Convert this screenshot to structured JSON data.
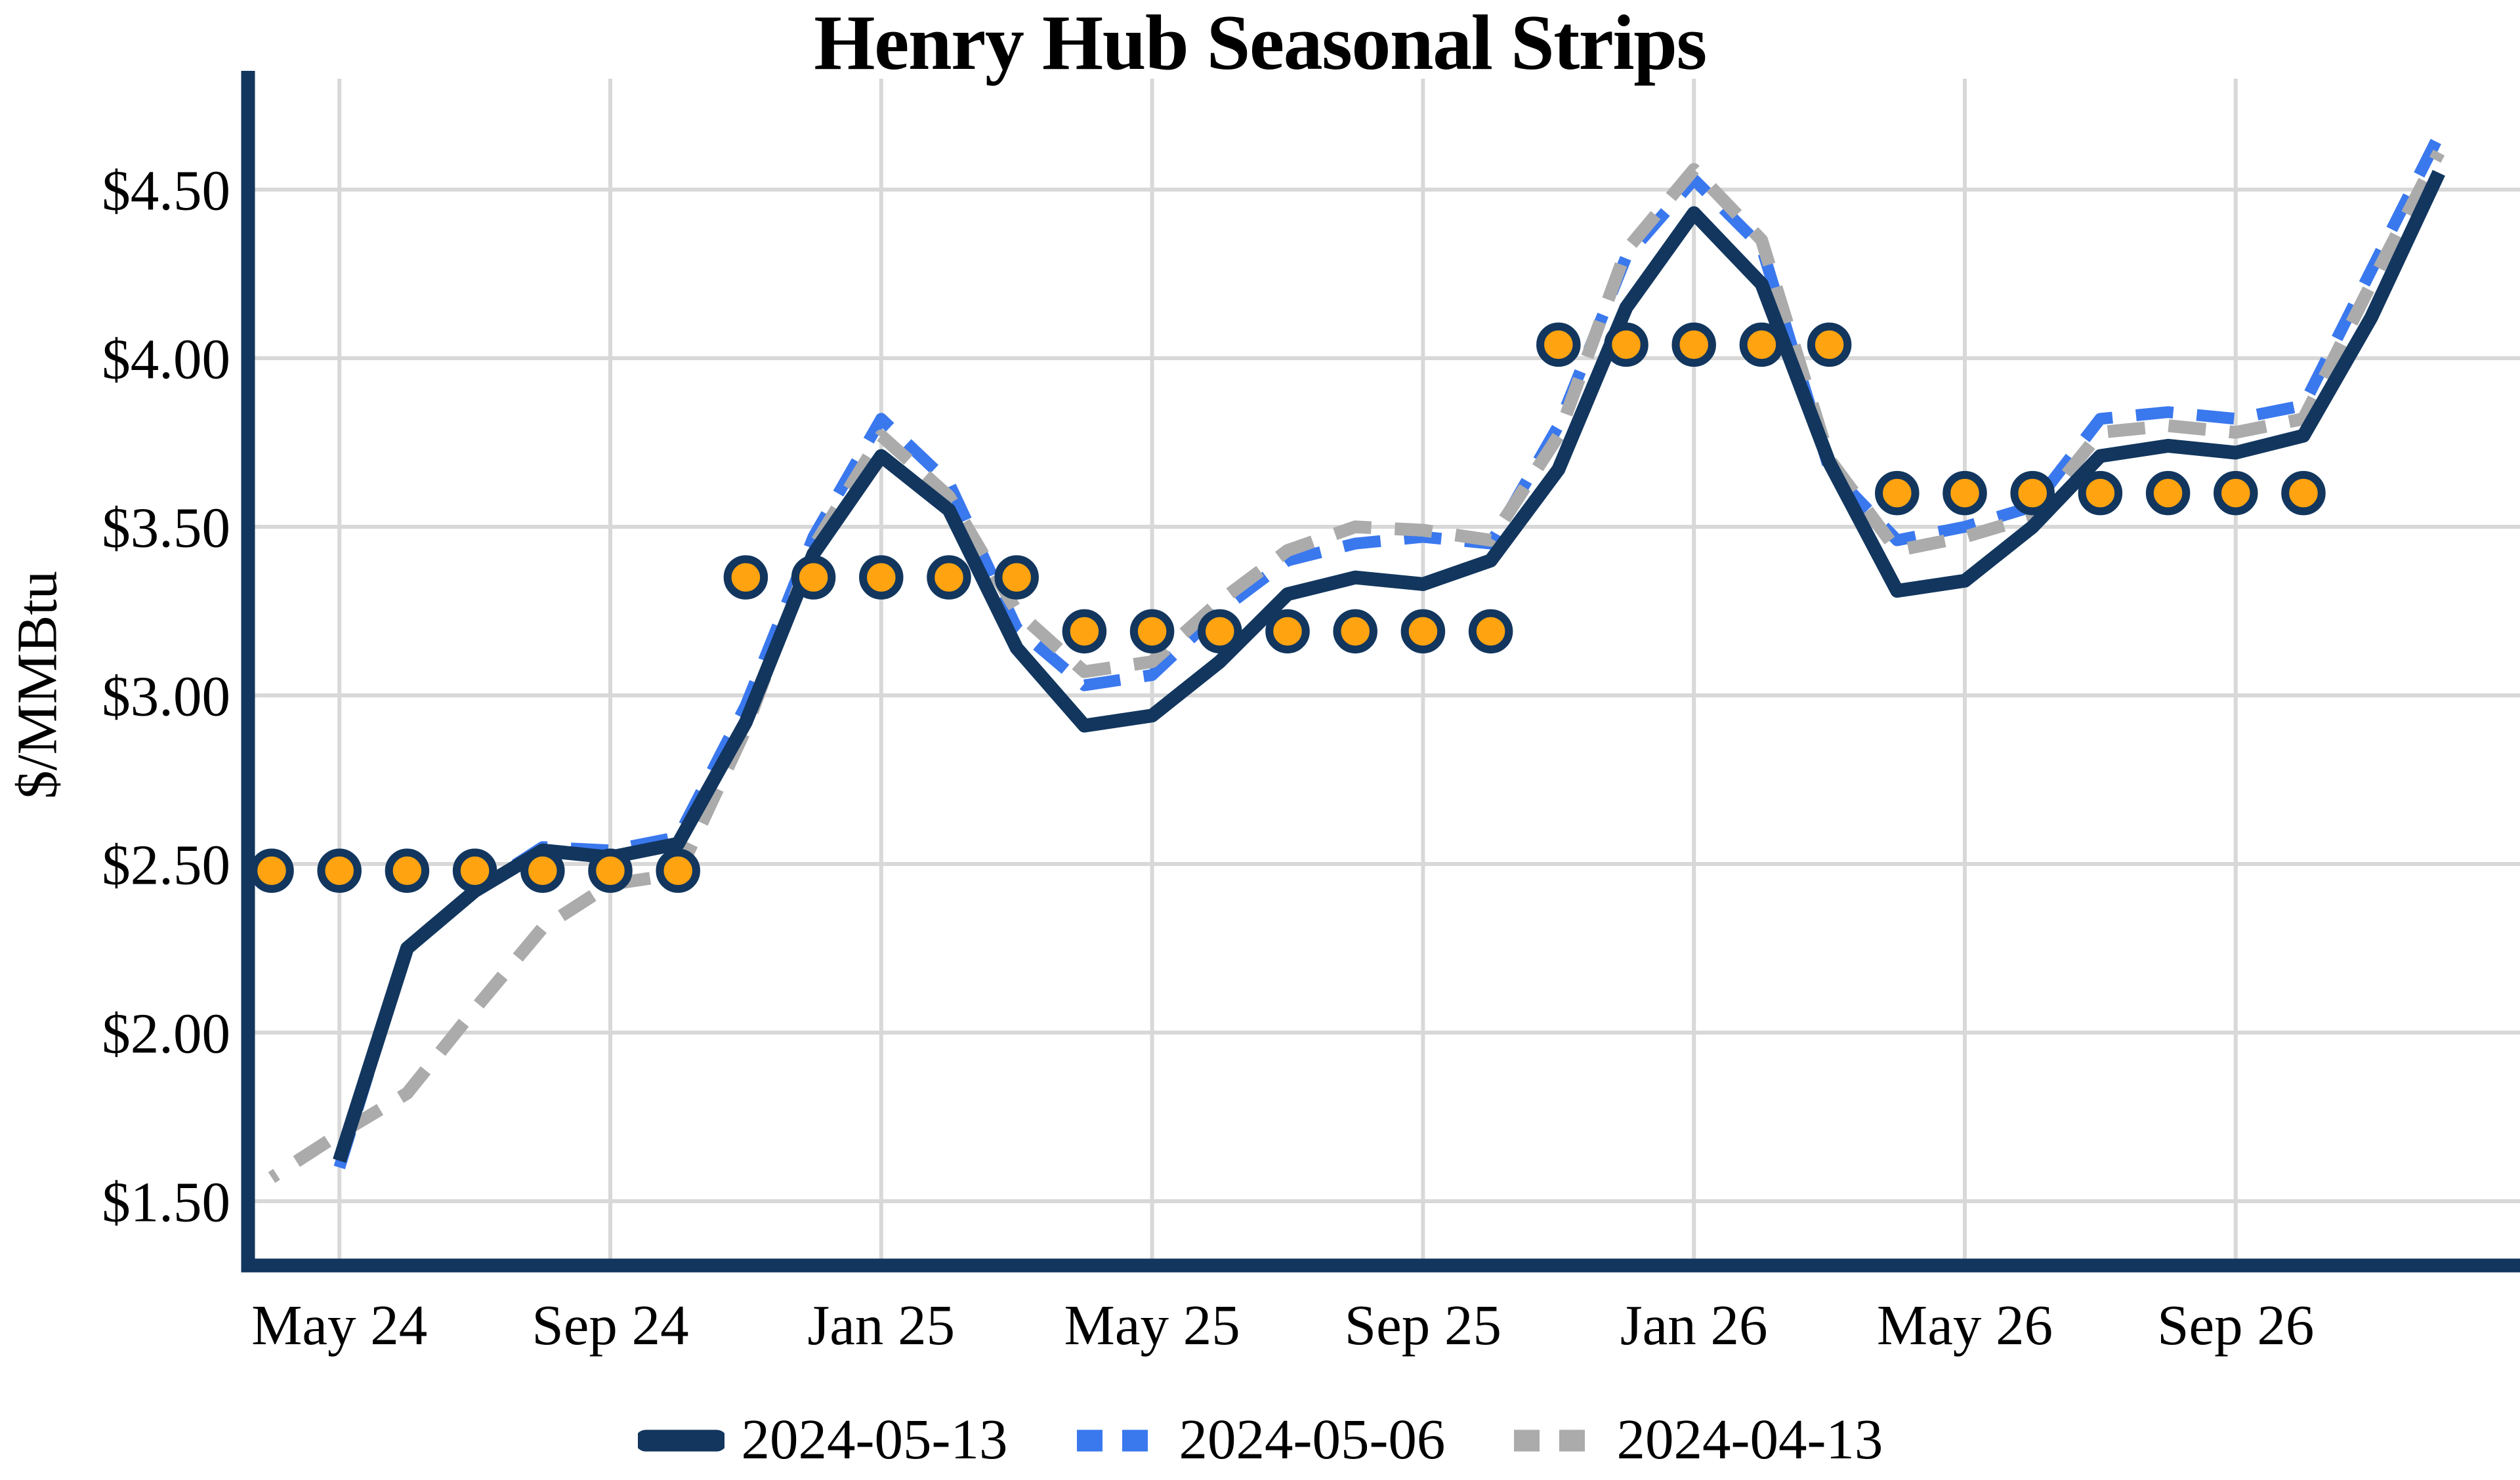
{
  "page": {
    "background": "#ffffff"
  },
  "chart_data": {
    "type": "line",
    "title": "Henry Hub Seasonal Strips",
    "ylabel": "$/MMBtu",
    "xlabel": "",
    "grid": true,
    "grid_color": "#d8d8d8",
    "axis_color": "#12365e",
    "ylim": [
      1.31,
      4.81
    ],
    "y_ticks": [
      1.5,
      2.0,
      2.5,
      3.0,
      3.5,
      4.0,
      4.5
    ],
    "y_tick_labels": [
      "$1.50",
      "$2.00",
      "$2.50",
      "$3.00",
      "$3.50",
      "$4.00",
      "$4.50"
    ],
    "months": [
      "Apr 24",
      "May 24",
      "Jun 24",
      "Jul 24",
      "Aug 24",
      "Sep 24",
      "Oct 24",
      "Nov 24",
      "Dec 24",
      "Jan 25",
      "Feb 25",
      "Mar 25",
      "Apr 25",
      "May 25",
      "Jun 25",
      "Jul 25",
      "Aug 25",
      "Sep 25",
      "Oct 25",
      "Nov 25",
      "Dec 25",
      "Jan 26",
      "Feb 26",
      "Mar 26",
      "Apr 26",
      "May 26",
      "Jun 26",
      "Jul 26",
      "Aug 26",
      "Sep 26",
      "Oct 26",
      "Nov 26",
      "Dec 26"
    ],
    "x_tick_indices": [
      1,
      5,
      9,
      13,
      17,
      21,
      25,
      29
    ],
    "x_tick_labels": [
      "May 24",
      "Sep 24",
      "Jan 25",
      "May 25",
      "Sep 25",
      "Jan 26",
      "May 26",
      "Sep 26"
    ],
    "legend_position": "bottom-center",
    "series": [
      {
        "name": "2024-05-13",
        "style": "solid",
        "color": "#12365e",
        "stroke_width": 7,
        "values": [
          null,
          1.62,
          2.25,
          2.42,
          2.54,
          2.52,
          2.56,
          2.92,
          3.42,
          3.71,
          3.55,
          3.14,
          2.91,
          2.94,
          3.1,
          3.3,
          3.35,
          3.33,
          3.4,
          3.67,
          4.15,
          4.43,
          4.22,
          3.69,
          3.31,
          3.34,
          3.5,
          3.71,
          3.74,
          3.72,
          3.77,
          4.12,
          4.55
        ]
      },
      {
        "name": "2024-05-06",
        "style": "dashed",
        "color": "#3a78ee",
        "stroke_width": 6,
        "values": [
          null,
          1.6,
          2.25,
          2.42,
          2.55,
          2.54,
          2.58,
          2.97,
          3.47,
          3.82,
          3.63,
          3.2,
          3.03,
          3.06,
          3.25,
          3.4,
          3.45,
          3.47,
          3.45,
          3.8,
          4.3,
          4.53,
          4.33,
          3.67,
          3.46,
          3.5,
          3.56,
          3.82,
          3.84,
          3.82,
          3.86,
          4.26,
          4.66
        ]
      },
      {
        "name": "2024-04-13",
        "style": "dashed",
        "color": "#ababab",
        "stroke_width": 6.5,
        "values": [
          1.57,
          1.7,
          1.82,
          2.07,
          2.31,
          2.44,
          2.47,
          2.9,
          3.44,
          3.77,
          3.59,
          3.25,
          3.07,
          3.1,
          3.28,
          3.43,
          3.5,
          3.49,
          3.46,
          3.77,
          4.32,
          4.56,
          4.35,
          3.7,
          3.43,
          3.47,
          3.53,
          3.78,
          3.8,
          3.78,
          3.82,
          4.22,
          4.61
        ]
      }
    ],
    "seasonal_strips": [
      {
        "price": 2.48,
        "from": "Apr 24",
        "to": "Oct 24",
        "from_index": 0,
        "to_index": 6
      },
      {
        "price": 3.35,
        "from": "Nov 24",
        "to": "Mar 25",
        "from_index": 7,
        "to_index": 11
      },
      {
        "price": 3.19,
        "from": "Apr 25",
        "to": "Oct 25",
        "from_index": 12,
        "to_index": 18
      },
      {
        "price": 4.04,
        "from": "Nov 25",
        "to": "Mar 26",
        "from_index": 19,
        "to_index": 23
      },
      {
        "price": 3.6,
        "from": "Apr 26",
        "to": "Oct 26",
        "from_index": 24,
        "to_index": 30
      }
    ],
    "strip_marker": {
      "shape": "circle",
      "fill": "#ffa310",
      "edge": "#12365e",
      "radius": 9.25,
      "edge_width": 4
    }
  }
}
